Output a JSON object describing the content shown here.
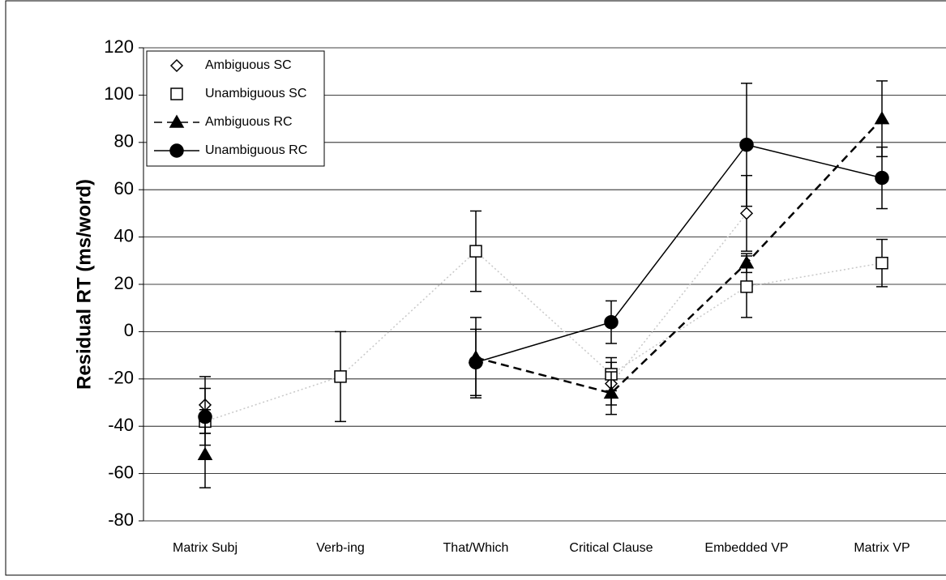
{
  "chart_data": {
    "type": "line",
    "y_label": "Residual RT (ms/word)",
    "categories": [
      "Matrix Subj",
      "Verb-ing",
      "That/Which",
      "Critical Clause",
      "Embedded VP",
      "Matrix VP"
    ],
    "series": [
      {
        "name": "Ambiguous SC",
        "color": "#000000",
        "marker": "diamond",
        "line_style": "faint",
        "values": [
          -31,
          null,
          null,
          -22,
          50,
          null
        ],
        "errors": [
          12,
          null,
          null,
          9,
          16,
          null
        ]
      },
      {
        "name": "Unambiguous SC",
        "color": "#000000",
        "marker": "square",
        "line_style": "faint",
        "values": [
          -38,
          -19,
          34,
          -18,
          19,
          29
        ],
        "errors": [
          5,
          19,
          17,
          7,
          13,
          10
        ]
      },
      {
        "name": "Ambiguous RC",
        "color": "#000000",
        "marker": "triangle",
        "line_style": "dashed",
        "values": [
          -52,
          null,
          -11,
          -26,
          29,
          90
        ],
        "errors": [
          14,
          null,
          17,
          9,
          4,
          16
        ]
      },
      {
        "name": "Unambiguous RC",
        "color": "#000000",
        "marker": "circle",
        "line_style": "solid",
        "values": [
          -36,
          null,
          -13,
          4,
          79,
          65
        ],
        "errors": [
          12,
          null,
          14,
          9,
          26,
          13
        ]
      }
    ],
    "ylim": [
      -80,
      120
    ],
    "yticks": [
      -80,
      -60,
      -40,
      -20,
      0,
      20,
      40,
      60,
      80,
      100,
      120
    ],
    "grid": true,
    "legend": "top-left"
  }
}
